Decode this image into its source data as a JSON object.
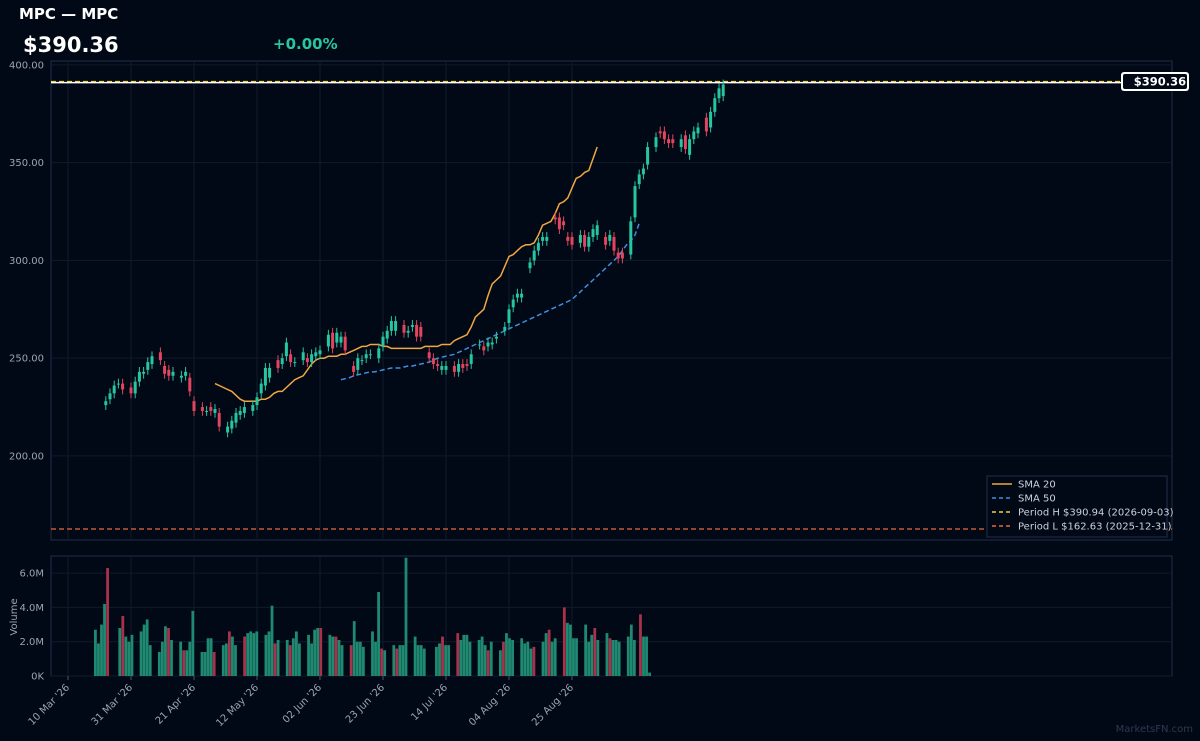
{
  "header": {
    "title": "MPC — MPC",
    "price": "$390.36",
    "change": "+0.00%"
  },
  "colors": {
    "background": "#020916",
    "up": "#26c6a2",
    "down": "#e2455f",
    "vol_up": "#1f8a71",
    "vol_down": "#a8324b",
    "sma20": "#f0a742",
    "sma50": "#3d8fe0",
    "period_high": "#f2d04a",
    "period_low": "#e96a3a",
    "panel_border": "#22304a",
    "grid": "#0f1a2c"
  },
  "watermark": "MarketsFN.com",
  "chart_data": {
    "type": "candlestick",
    "price_axis": {
      "ylim": [
        157,
        402
      ],
      "ticks": [
        "200.00",
        "250.00",
        "300.00",
        "350.00",
        "400.00"
      ],
      "tick_values": [
        200,
        250,
        300,
        350,
        400
      ]
    },
    "volume_axis": {
      "ylabel": "Volume",
      "ylim": [
        0,
        7000000
      ],
      "ticks": [
        "0K",
        "2.0M",
        "4.0M",
        "6.0M"
      ],
      "tick_values": [
        0,
        2000000,
        4000000,
        6000000
      ]
    },
    "x_axis": {
      "labels": [
        "10 Mar '26",
        "31 Mar '26",
        "21 Apr '26",
        "12 May '26",
        "02 Jun '26",
        "23 Jun '26",
        "14 Jul '26",
        "04 Aug '26",
        "25 Aug '26"
      ],
      "label_index": [
        0,
        15,
        30,
        45,
        60,
        75,
        90,
        105,
        120
      ]
    },
    "last_price_label": "$390.36",
    "last_price": 390.36,
    "legend": {
      "position": "bottom-right",
      "entries": [
        "SMA 20",
        "SMA 50",
        "Period H $390.94 (2026-09-03)",
        "Period L $162.63 (2025-12-31)"
      ]
    },
    "period_high": 390.94,
    "period_low": 162.63,
    "candles_close": [
      228,
      232,
      236,
      237,
      234,
      null,
      232,
      238,
      243,
      243,
      248,
      251,
      null,
      249,
      242,
      241,
      243,
      null,
      241,
      243,
      233,
      223,
      null,
      223,
      223,
      223,
      224,
      215,
      null,
      215,
      218,
      222,
      223,
      225,
      null,
      226,
      230,
      237,
      245,
      245,
      null,
      245,
      250,
      258,
      248,
      248,
      null,
      253,
      248,
      252,
      253,
      254,
      null,
      262,
      255,
      263,
      261,
      254,
      null,
      243,
      250,
      249,
      252,
      252,
      null,
      255,
      261,
      264,
      269,
      269,
      null,
      263,
      264,
      267,
      261,
      261,
      null,
      250,
      247,
      246,
      246,
      246,
      null,
      243,
      247,
      245,
      246,
      252,
      null,
      257,
      254,
      258,
      258,
      261,
      null,
      266,
      275,
      280,
      283,
      283,
      null,
      299,
      305,
      309,
      312,
      312,
      null,
      321,
      316,
      318,
      310,
      308,
      null,
      313,
      307,
      312,
      316,
      318,
      null,
      308,
      313,
      305,
      301,
      301,
      null,
      320,
      338,
      344,
      347,
      358,
      null,
      363,
      365,
      362,
      360,
      360,
      null,
      362,
      357,
      362,
      366,
      368,
      null,
      366,
      376,
      383,
      388,
      390
    ],
    "candles_open": [
      226,
      229,
      232,
      237,
      237,
      null,
      235,
      232,
      238,
      242,
      244,
      247,
      null,
      253,
      246,
      244,
      241,
      null,
      240,
      241,
      240,
      228,
      null,
      225,
      223,
      225,
      222,
      222,
      null,
      212,
      214,
      217,
      221,
      222,
      null,
      223,
      226,
      232,
      236,
      240,
      null,
      249,
      247,
      251,
      252,
      248,
      null,
      249,
      250,
      248,
      251,
      252,
      null,
      256,
      263,
      258,
      258,
      261,
      null,
      246,
      244,
      249,
      250,
      252,
      null,
      250,
      256,
      260,
      264,
      264,
      null,
      267,
      263,
      266,
      267,
      266,
      null,
      253,
      250,
      247,
      244,
      244,
      null,
      246,
      243,
      247,
      247,
      247,
      null,
      257,
      256,
      256,
      257,
      260,
      null,
      264,
      268,
      276,
      281,
      281,
      null,
      296,
      300,
      305,
      310,
      310,
      null,
      322,
      322,
      320,
      312,
      312,
      null,
      309,
      313,
      307,
      312,
      313,
      null,
      312,
      310,
      312,
      304,
      304,
      null,
      303,
      322,
      339,
      344,
      349,
      null,
      358,
      366,
      366,
      362,
      362,
      null,
      358,
      364,
      354,
      362,
      365,
      null,
      373,
      368,
      376,
      383,
      384
    ],
    "volume_millions": [
      0,
      0,
      0,
      0,
      0,
      0,
      0,
      0,
      0,
      2.7,
      1.9,
      3.0,
      4.2,
      6.3,
      0,
      0,
      0,
      2.8,
      3.5,
      2.3,
      2.0,
      2.4,
      0,
      0,
      2.6,
      3.0,
      3.3,
      1.8,
      0,
      0,
      1.4,
      2.0,
      2.9,
      2.8,
      2.1,
      0,
      0,
      2.0,
      1.5,
      1.5,
      2.0,
      3.8,
      0,
      0,
      1.4,
      1.4,
      2.2,
      2.2,
      1.4,
      0,
      0,
      1.8,
      1.9,
      2.6,
      2.3,
      1.8,
      0,
      0,
      2.3,
      2.5,
      2.6,
      2.5,
      2.6,
      0,
      0,
      2.4,
      2.6,
      4.1,
      1.9,
      2.1,
      0,
      0,
      2.1,
      1.8,
      2.2,
      2.6,
      1.9,
      0,
      0,
      2.4,
      1.9,
      2.7,
      2.8,
      2.8,
      0,
      0,
      2.4,
      2.3,
      2.3,
      2.1,
      1.8,
      0,
      0,
      1.8,
      3.2,
      2.0,
      2.0,
      1.7,
      0,
      0,
      2.6,
      2.0,
      4.9,
      1.6,
      1.5,
      0,
      0,
      1.8,
      1.6,
      1.8,
      1.8,
      6.9,
      0,
      0,
      2.3,
      1.8,
      1.8,
      1.6,
      0,
      0,
      0,
      1.7,
      1.9,
      2.3,
      1.8,
      1.8,
      0,
      0,
      2.5,
      2.1,
      2.4,
      2.4,
      2.0,
      0,
      0,
      2.1,
      2.3,
      1.8,
      1.5,
      2.0,
      0,
      0,
      1.5,
      2.0,
      2.5,
      2.2,
      2.1,
      0,
      0,
      2.2,
      1.9,
      2.0,
      1.6,
      1.7,
      0,
      0,
      2.0,
      2.5,
      2.7,
      2.0,
      2.2,
      0,
      0,
      4.0,
      3.1,
      3.0,
      2.2,
      2.2,
      0,
      0,
      3.0,
      2.0,
      2.4,
      2.8,
      2.1,
      0,
      0,
      2.5,
      2.2,
      2.1,
      2.1,
      2.0,
      0,
      0,
      2.3,
      3.0,
      2.1,
      0,
      3.6,
      2.3,
      2.3,
      0.2
    ],
    "sma20_start_index": 35,
    "sma20": [
      237,
      236,
      235,
      234,
      233,
      231,
      229,
      228,
      228,
      228,
      228,
      229,
      229,
      230,
      232,
      233,
      233,
      235,
      237,
      239,
      240,
      241,
      244,
      247,
      249,
      250,
      250,
      251,
      251,
      251,
      252,
      252,
      253,
      254,
      255,
      256,
      256,
      257,
      257,
      257,
      256,
      256,
      255,
      255,
      255,
      255,
      255,
      255,
      255,
      255,
      256,
      256,
      256,
      256,
      257,
      257,
      257,
      259,
      260,
      261,
      262,
      266,
      271,
      273,
      275,
      282,
      288,
      290,
      292,
      297,
      302,
      303,
      305,
      307,
      308,
      308,
      309,
      313,
      318,
      319,
      320,
      324,
      329,
      330,
      332,
      337,
      342,
      343,
      345,
      346,
      352,
      358
    ],
    "sma50_start_index": 65,
    "sma50": [
      239,
      239.5,
      240,
      241,
      241.5,
      242,
      242.5,
      243,
      243,
      243.5,
      244,
      244.5,
      245,
      245,
      245,
      245.5,
      246,
      246,
      246.5,
      247,
      247.5,
      248,
      249,
      250,
      250.5,
      251,
      251.5,
      252,
      253,
      254,
      255,
      256,
      257,
      258,
      259,
      260,
      261,
      262,
      263,
      264,
      265,
      266,
      267,
      268,
      269,
      270,
      271,
      272,
      273,
      274,
      275,
      276,
      277,
      278,
      279,
      280,
      282,
      284,
      286,
      288,
      290,
      292,
      294,
      296,
      298,
      300,
      302,
      305,
      308,
      310,
      313,
      319
    ]
  }
}
